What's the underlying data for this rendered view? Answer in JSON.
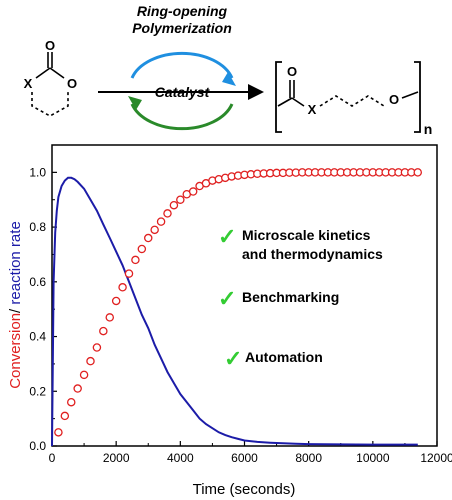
{
  "scheme": {
    "title_line1": "Ring-opening",
    "title_line2": "Polymerization",
    "catalyst_label": "Catalyst",
    "monomer": {
      "carbonyl_o": "O",
      "ring_heteroatom_x": "X",
      "ring_o": "O"
    },
    "polymer": {
      "carbonyl_o": "O",
      "x_atom": "X",
      "ether_o": "O",
      "repeat_n": "n"
    },
    "colors": {
      "cycle_top": "#1f8fe0",
      "cycle_bottom": "#2a8a2a",
      "arrow": "#000000"
    }
  },
  "features": [
    {
      "check": "✓",
      "line1": "Microscale kinetics",
      "line2": "and thermodynamics"
    },
    {
      "check": "✓",
      "line1": "Benchmarking",
      "line2": ""
    },
    {
      "check": "✓",
      "line1": "Automation",
      "line2": ""
    }
  ],
  "colors": {
    "conversion": "#e02020",
    "rate": "#1c1ca8",
    "check": "#33cc33",
    "axis": "#000000"
  },
  "chart_data": {
    "type": "scatter",
    "xlabel": "Time (seconds)",
    "ylabel_parts": [
      {
        "text": "Conversion",
        "color": "#e02020"
      },
      {
        "text": "/ ",
        "color": "#000000"
      },
      {
        "text": "reaction rate",
        "color": "#1c1ca8"
      }
    ],
    "xlim": [
      0,
      12000
    ],
    "ylim": [
      0,
      1.1
    ],
    "xticks": [
      0,
      2000,
      4000,
      6000,
      8000,
      10000,
      12000
    ],
    "xtick_labels": [
      "0",
      "2000",
      "4000",
      "6000",
      "8000",
      "10000",
      "12000"
    ],
    "yticks": [
      0.0,
      0.2,
      0.4,
      0.6,
      0.8,
      1.0
    ],
    "ytick_labels": [
      "0.0",
      "0.2",
      "0.4",
      "0.6",
      "0.8",
      "1.0"
    ],
    "grid": false,
    "series": [
      {
        "kind": "markers",
        "marker": "open-circle",
        "color": "#e02020",
        "x": [
          200,
          400,
          600,
          800,
          1000,
          1200,
          1400,
          1600,
          1800,
          2000,
          2200,
          2400,
          2600,
          2800,
          3000,
          3200,
          3400,
          3600,
          3800,
          4000,
          4200,
          4400,
          4600,
          4800,
          5000,
          5200,
          5400,
          5600,
          5800,
          6000,
          6200,
          6400,
          6600,
          6800,
          7000,
          7200,
          7400,
          7600,
          7800,
          8000,
          8200,
          8400,
          8600,
          8800,
          9000,
          9200,
          9400,
          9600,
          9800,
          10000,
          10200,
          10400,
          10600,
          10800,
          11000,
          11200,
          11400
        ],
        "y": [
          0.05,
          0.11,
          0.16,
          0.21,
          0.26,
          0.31,
          0.36,
          0.42,
          0.47,
          0.53,
          0.58,
          0.63,
          0.68,
          0.72,
          0.76,
          0.79,
          0.82,
          0.85,
          0.88,
          0.9,
          0.92,
          0.93,
          0.95,
          0.96,
          0.97,
          0.975,
          0.98,
          0.985,
          0.988,
          0.991,
          0.993,
          0.995,
          0.996,
          0.997,
          0.998,
          0.998,
          0.999,
          0.999,
          1.0,
          1.0,
          1.0,
          1.0,
          1.0,
          1.0,
          1.0,
          1.0,
          1.0,
          1.0,
          1.0,
          1.0,
          1.0,
          1.0,
          1.0,
          1.0,
          1.0,
          1.0,
          1.0
        ]
      },
      {
        "kind": "line",
        "color": "#1c1ca8",
        "x": [
          0,
          50,
          100,
          150,
          200,
          300,
          400,
          500,
          600,
          700,
          800,
          1000,
          1200,
          1400,
          1600,
          1800,
          2000,
          2200,
          2400,
          2600,
          2800,
          3000,
          3200,
          3400,
          3600,
          3800,
          4000,
          4200,
          4400,
          4600,
          4800,
          5000,
          5200,
          5400,
          5600,
          5800,
          6000,
          6400,
          6800,
          7200,
          7600,
          8000,
          9000,
          10000,
          11000,
          11400
        ],
        "y": [
          0.0,
          0.6,
          0.78,
          0.86,
          0.91,
          0.95,
          0.97,
          0.98,
          0.98,
          0.975,
          0.965,
          0.94,
          0.9,
          0.86,
          0.81,
          0.76,
          0.71,
          0.66,
          0.6,
          0.54,
          0.48,
          0.43,
          0.37,
          0.32,
          0.27,
          0.23,
          0.19,
          0.16,
          0.13,
          0.1,
          0.08,
          0.065,
          0.05,
          0.04,
          0.032,
          0.026,
          0.02,
          0.015,
          0.012,
          0.01,
          0.008,
          0.007,
          0.006,
          0.005,
          0.005,
          0.005
        ]
      }
    ]
  }
}
